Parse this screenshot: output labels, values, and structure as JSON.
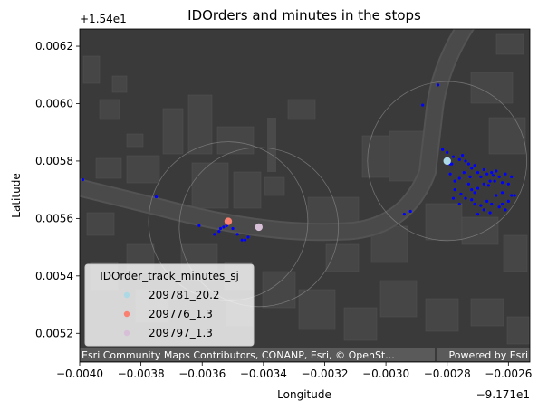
{
  "chart_data": {
    "type": "scatter",
    "title": "IDOrders and minutes in the stops",
    "xlabel": "Longitude",
    "ylabel": "Latitude",
    "x_offset_label": "−9.171e1",
    "y_offset_label": "+1.54e1",
    "xlim": [
      -0.004,
      -0.00253
    ],
    "ylim": [
      0.0051,
      0.00626
    ],
    "x_ticks": [
      -0.004,
      -0.0038,
      -0.0036,
      -0.0034,
      -0.0032,
      -0.003,
      -0.0028,
      -0.0026
    ],
    "x_tick_labels": [
      "−0.0040",
      "−0.0038",
      "−0.0036",
      "−0.0034",
      "−0.0032",
      "−0.0030",
      "−0.0028",
      "−0.0026"
    ],
    "y_ticks": [
      0.0052,
      0.0054,
      0.0056,
      0.0058,
      0.006,
      0.0062
    ],
    "y_tick_labels": [
      "0.0052",
      "0.0054",
      "0.0056",
      "0.0058",
      "0.0060",
      "0.0062"
    ],
    "grid": false,
    "basemap": "dark gray canvas",
    "colors": {
      "basemap_bg": "#3a3a3a",
      "road": "#4e4e4e",
      "building": "#464646",
      "track_points": "#0000ff",
      "circle_stroke": "#8a8a8a"
    },
    "legend": {
      "title": "IDOrder_track_minutes_sj",
      "placement": "bottom-left",
      "entries": [
        {
          "label": "209781_20.2",
          "color": "#add8e6"
        },
        {
          "label": "209776_1.3",
          "color": "#fa8072"
        },
        {
          "label": "209797_1.3",
          "color": "#d8bfd8"
        }
      ]
    },
    "stops": [
      {
        "name": "209781_20.2",
        "x": -0.0028,
        "y": 0.0058,
        "color": "#add8e6"
      },
      {
        "name": "209776_1.3",
        "x": -0.003515,
        "y": 0.00559,
        "color": "#fa8072"
      },
      {
        "name": "209797_1.3",
        "x": -0.003415,
        "y": 0.00557,
        "color": "#d8bfd8"
      }
    ],
    "stop_radius_deg": 0.00026,
    "track_points": [
      [
        -0.00399,
        0.005735
      ],
      [
        -0.00375,
        0.005675
      ],
      [
        -0.00361,
        0.005575
      ],
      [
        -0.00356,
        0.005545
      ],
      [
        -0.003545,
        0.005555
      ],
      [
        -0.00353,
        0.00557
      ],
      [
        -0.00352,
        0.005575
      ],
      [
        -0.0035,
        0.005565
      ],
      [
        -0.003485,
        0.005545
      ],
      [
        -0.00347,
        0.005525
      ],
      [
        -0.00346,
        0.005525
      ],
      [
        -0.00345,
        0.005535
      ],
      [
        -0.00354,
        0.005565
      ],
      [
        -0.00294,
        0.005615
      ],
      [
        -0.00292,
        0.005625
      ],
      [
        -0.00288,
        0.005995
      ],
      [
        -0.00283,
        0.006065
      ],
      [
        -0.002815,
        0.00584
      ],
      [
        -0.0028,
        0.00583
      ],
      [
        -0.00278,
        0.005815
      ],
      [
        -0.00279,
        0.00579
      ],
      [
        -0.00276,
        0.005805
      ],
      [
        -0.00275,
        0.00582
      ],
      [
        -0.00274,
        0.0058
      ],
      [
        -0.00273,
        0.00579
      ],
      [
        -0.00272,
        0.005775
      ],
      [
        -0.00271,
        0.005785
      ],
      [
        -0.0027,
        0.00576
      ],
      [
        -0.00269,
        0.005745
      ],
      [
        -0.00268,
        0.00577
      ],
      [
        -0.00267,
        0.005755
      ],
      [
        -0.00266,
        0.00573
      ],
      [
        -0.00265,
        0.00575
      ],
      [
        -0.00264,
        0.005765
      ],
      [
        -0.00263,
        0.005745
      ],
      [
        -0.00262,
        0.005725
      ],
      [
        -0.00261,
        0.005755
      ],
      [
        -0.002655,
        0.00576
      ],
      [
        -0.002645,
        0.00573
      ],
      [
        -0.002665,
        0.005715
      ],
      [
        -0.00268,
        0.00572
      ],
      [
        -0.0027,
        0.005705
      ],
      [
        -0.00271,
        0.00569
      ],
      [
        -0.00272,
        0.0057
      ],
      [
        -0.00273,
        0.00572
      ],
      [
        -0.002725,
        0.005745
      ],
      [
        -0.002745,
        0.00576
      ],
      [
        -0.00276,
        0.00574
      ],
      [
        -0.002775,
        0.00573
      ],
      [
        -0.002775,
        0.0057
      ],
      [
        -0.002755,
        0.005685
      ],
      [
        -0.00274,
        0.00567
      ],
      [
        -0.00272,
        0.005665
      ],
      [
        -0.00271,
        0.00565
      ],
      [
        -0.00269,
        0.005645
      ],
      [
        -0.00267,
        0.00566
      ],
      [
        -0.00264,
        0.00568
      ],
      [
        -0.00262,
        0.00569
      ],
      [
        -0.00259,
        0.00568
      ],
      [
        -0.0026,
        0.00566
      ],
      [
        -0.00263,
        0.00564
      ],
      [
        -0.00266,
        0.00562
      ],
      [
        -0.00268,
        0.00563
      ],
      [
        -0.0027,
        0.005615
      ],
      [
        -0.00276,
        0.00565
      ],
      [
        -0.00278,
        0.00567
      ],
      [
        -0.00279,
        0.005755
      ],
      [
        -0.002785,
        0.00579
      ],
      [
        -0.00262,
        0.00565
      ],
      [
        -0.002655,
        0.00565
      ],
      [
        -0.00261,
        0.00563
      ],
      [
        -0.00258,
        0.00568
      ],
      [
        -0.0026,
        0.00572
      ],
      [
        -0.00259,
        0.005745
      ]
    ],
    "attribution": "Esri Community Maps Contributors, CONANP, Esri, © OpenSt...",
    "powered_by": "Powered by Esri"
  }
}
